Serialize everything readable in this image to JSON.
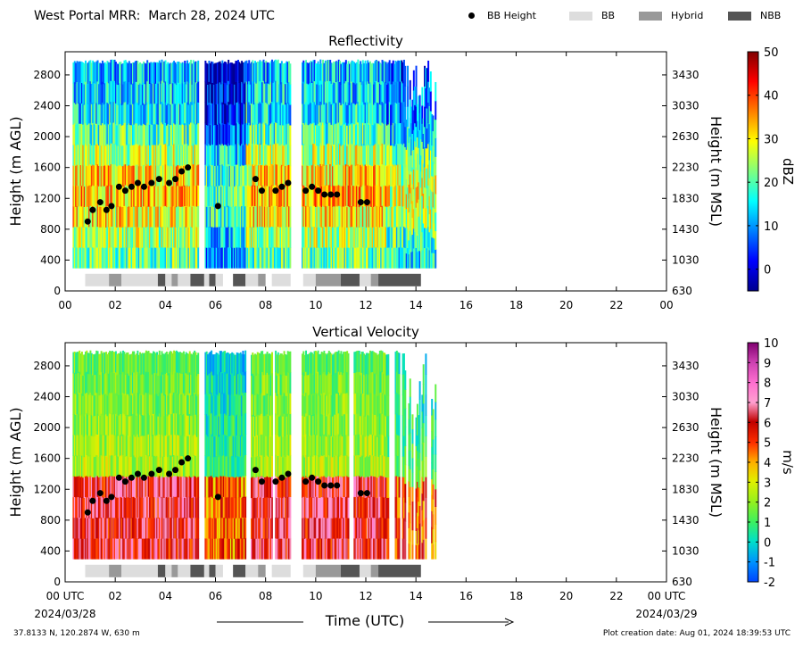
{
  "header": {
    "title": "West Portal MRR:  March 28, 2024 UTC",
    "legend": [
      {
        "label": "BB Height",
        "color": "#000000",
        "kind": "dot"
      },
      {
        "label": "BB",
        "color": "#dddddd",
        "kind": "swatch"
      },
      {
        "label": "Hybrid",
        "color": "#999999",
        "kind": "swatch"
      },
      {
        "label": "NBB",
        "color": "#555555",
        "kind": "swatch"
      }
    ]
  },
  "footer": {
    "location": "37.8133 N, 120.2874 W, 630 m",
    "creation": "Plot creation date: Aug 01, 2024 18:39:53 UTC",
    "xlabel": "Time (UTC)",
    "start_date": "2024/03/28",
    "end_date": "2024/03/29"
  },
  "chart_data": [
    {
      "type": "heatmap",
      "title": "Reflectivity",
      "ylabel": "Height (m AGL)",
      "y2label": "Height (m MSL)",
      "xlim": [
        0,
        24
      ],
      "ylim": [
        0,
        3100
      ],
      "xticks": [
        "00",
        "02",
        "04",
        "06",
        "08",
        "10",
        "12",
        "14",
        "16",
        "18",
        "20",
        "22",
        "00"
      ],
      "yticks": [
        0,
        400,
        800,
        1200,
        1600,
        2000,
        2400,
        2800
      ],
      "y2ticks": [
        "630",
        "1030",
        "1430",
        "1830",
        "2230",
        "2630",
        "3030",
        "3430"
      ],
      "colorbar": {
        "label": "dBZ",
        "min": -5,
        "max": 50,
        "ticks": [
          0,
          10,
          20,
          30,
          40,
          50
        ]
      },
      "data_extent": {
        "x": [
          0.3,
          14.8
        ],
        "y": [
          300,
          3000
        ]
      },
      "gaps": [
        [
          5.3,
          5.55
        ],
        [
          9.0,
          9.4
        ]
      ],
      "melting_layer_height": 1300
    },
    {
      "type": "heatmap",
      "title": "Vertical Velocity",
      "ylabel": "Height (m AGL)",
      "y2label": "Height (m MSL)",
      "xlim": [
        0,
        24
      ],
      "ylim": [
        0,
        3100
      ],
      "xticks": [
        "00 UTC",
        "02",
        "04",
        "06",
        "08",
        "10",
        "12",
        "14",
        "16",
        "18",
        "20",
        "22",
        "00 UTC"
      ],
      "yticks": [
        0,
        400,
        800,
        1200,
        1600,
        2000,
        2400,
        2800
      ],
      "y2ticks": [
        "630",
        "1030",
        "1430",
        "1830",
        "2230",
        "2630",
        "3030",
        "3430"
      ],
      "colorbar": {
        "label": "m/s",
        "min": -2,
        "max": 10,
        "ticks": [
          -2,
          -1,
          0,
          1,
          2,
          3,
          4,
          5,
          6,
          7,
          8,
          9,
          10
        ]
      },
      "data_extent": {
        "x": [
          0.3,
          14.8
        ],
        "y": [
          300,
          3000
        ]
      },
      "gaps": [
        [
          5.3,
          5.55
        ],
        [
          7.2,
          7.4
        ],
        [
          8.25,
          8.35
        ],
        [
          9.0,
          9.4
        ],
        [
          11.3,
          11.5
        ]
      ],
      "melting_layer_height": 1300
    }
  ],
  "bb_height": [
    [
      0.9,
      900
    ],
    [
      1.1,
      1050
    ],
    [
      1.4,
      1150
    ],
    [
      1.65,
      1050
    ],
    [
      1.85,
      1100
    ],
    [
      2.15,
      1350
    ],
    [
      2.4,
      1300
    ],
    [
      2.65,
      1350
    ],
    [
      2.9,
      1400
    ],
    [
      3.15,
      1350
    ],
    [
      3.45,
      1400
    ],
    [
      3.75,
      1450
    ],
    [
      4.15,
      1400
    ],
    [
      4.4,
      1450
    ],
    [
      4.65,
      1550
    ],
    [
      4.9,
      1600
    ],
    [
      6.1,
      1100
    ],
    [
      7.6,
      1450
    ],
    [
      7.85,
      1300
    ],
    [
      8.4,
      1300
    ],
    [
      8.65,
      1350
    ],
    [
      8.9,
      1400
    ],
    [
      9.6,
      1300
    ],
    [
      9.85,
      1350
    ],
    [
      10.1,
      1300
    ],
    [
      10.35,
      1250
    ],
    [
      10.6,
      1250
    ],
    [
      10.85,
      1250
    ],
    [
      11.8,
      1150
    ],
    [
      12.05,
      1150
    ]
  ],
  "bb_type_segments": [
    {
      "start": 0.8,
      "end": 1.75,
      "type": "BB"
    },
    {
      "start": 1.75,
      "end": 2.25,
      "type": "Hybrid"
    },
    {
      "start": 2.25,
      "end": 3.7,
      "type": "BB"
    },
    {
      "start": 3.7,
      "end": 4.0,
      "type": "NBB"
    },
    {
      "start": 4.0,
      "end": 4.25,
      "type": "BB"
    },
    {
      "start": 4.25,
      "end": 4.5,
      "type": "Hybrid"
    },
    {
      "start": 4.5,
      "end": 5.0,
      "type": "BB"
    },
    {
      "start": 5.0,
      "end": 5.55,
      "type": "NBB"
    },
    {
      "start": 5.55,
      "end": 5.75,
      "type": "BB"
    },
    {
      "start": 5.75,
      "end": 6.0,
      "type": "NBB"
    },
    {
      "start": 6.0,
      "end": 6.3,
      "type": "BB"
    },
    {
      "start": 6.7,
      "end": 7.2,
      "type": "NBB"
    },
    {
      "start": 7.2,
      "end": 7.7,
      "type": "BB"
    },
    {
      "start": 7.7,
      "end": 8.0,
      "type": "Hybrid"
    },
    {
      "start": 8.25,
      "end": 9.0,
      "type": "BB"
    },
    {
      "start": 9.5,
      "end": 10.0,
      "type": "BB"
    },
    {
      "start": 10.0,
      "end": 11.0,
      "type": "Hybrid"
    },
    {
      "start": 11.0,
      "end": 11.75,
      "type": "NBB"
    },
    {
      "start": 11.75,
      "end": 12.2,
      "type": "BB"
    },
    {
      "start": 12.2,
      "end": 12.5,
      "type": "Hybrid"
    },
    {
      "start": 12.5,
      "end": 14.2,
      "type": "NBB"
    }
  ]
}
